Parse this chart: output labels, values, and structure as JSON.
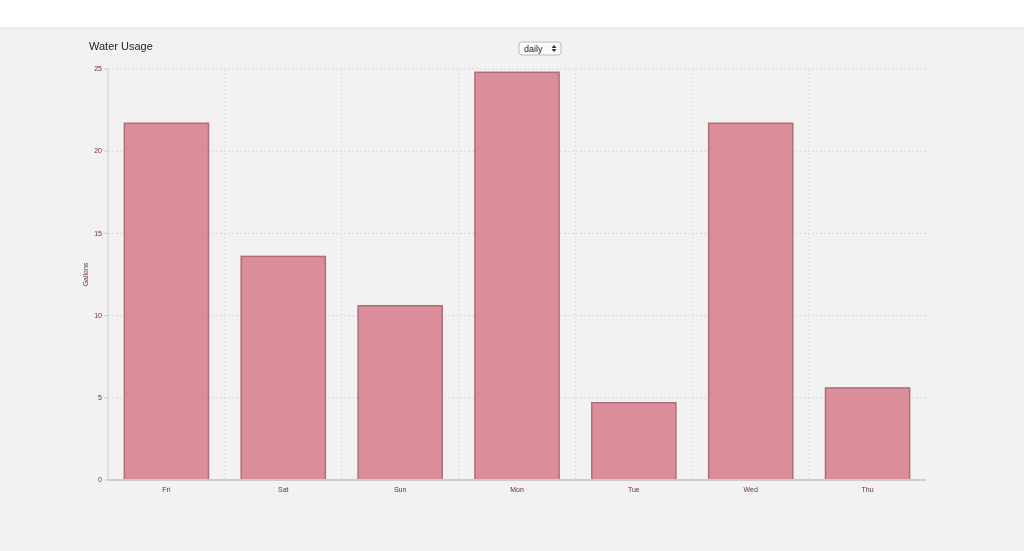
{
  "chart_data": {
    "type": "bar",
    "title": "Water Usage",
    "ylabel": "Gallons",
    "categories": [
      "Fri",
      "Sat",
      "Sun",
      "Mon",
      "Tue",
      "Wed",
      "Thu"
    ],
    "values": [
      21.7,
      13.6,
      10.6,
      24.8,
      4.7,
      21.7,
      5.6
    ],
    "color": "#d98793",
    "ylim": [
      0,
      25
    ],
    "yticks": [
      0,
      5,
      10,
      15,
      20,
      25
    ],
    "grid": true,
    "annotations": [
      "daily"
    ]
  }
}
